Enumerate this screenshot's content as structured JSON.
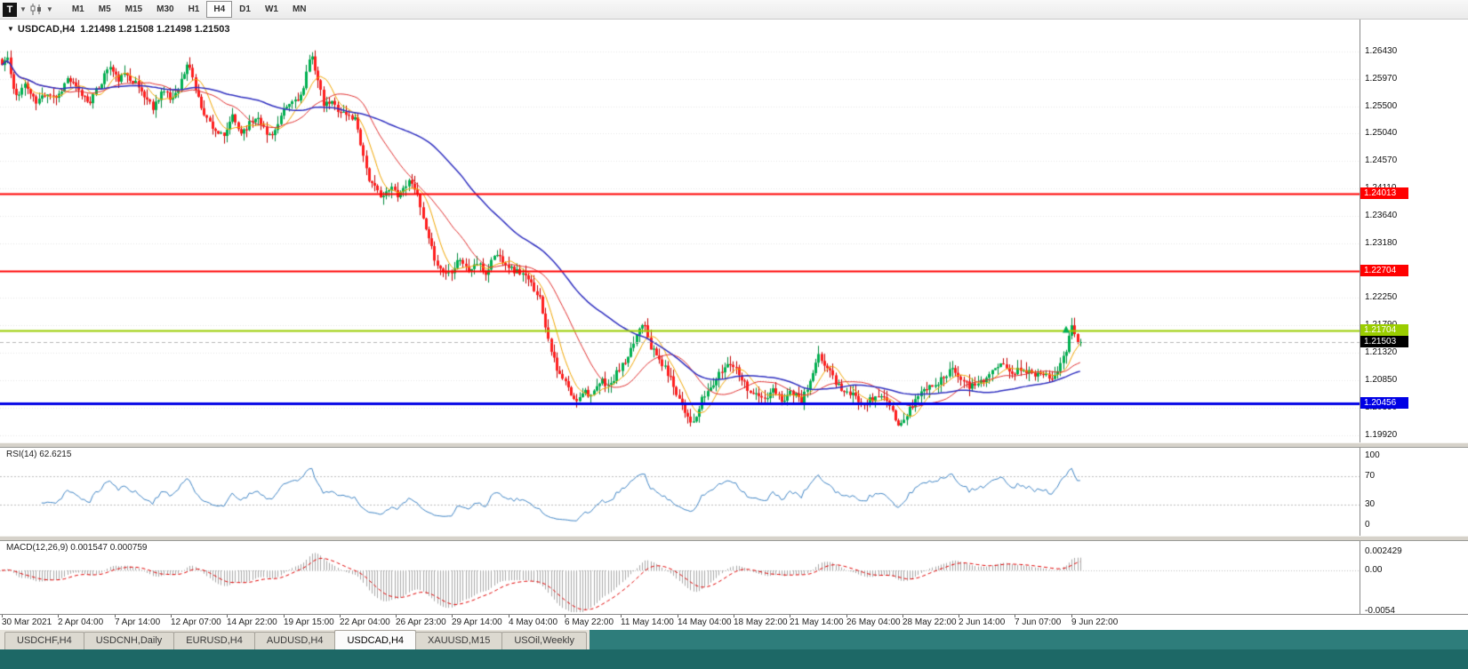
{
  "toolbar": {
    "t_icon": "T",
    "timeframes": [
      {
        "label": "M1",
        "active": false
      },
      {
        "label": "M5",
        "active": false
      },
      {
        "label": "M15",
        "active": false
      },
      {
        "label": "M30",
        "active": false
      },
      {
        "label": "H1",
        "active": false
      },
      {
        "label": "H4",
        "active": true
      },
      {
        "label": "D1",
        "active": false
      },
      {
        "label": "W1",
        "active": false
      },
      {
        "label": "MN",
        "active": false
      }
    ]
  },
  "header": {
    "collapse_icon": "▼",
    "symbol": "USDCAD,H4",
    "quotes": "1.21498 1.21508 1.21498 1.21503"
  },
  "price_axis": {
    "ticks": [
      "1.26430",
      "1.25970",
      "1.25500",
      "1.25040",
      "1.24570",
      "1.24110",
      "1.23640",
      "1.23180",
      "1.22710",
      "1.22250",
      "1.21790",
      "1.21320",
      "1.20850",
      "1.20390",
      "1.19920"
    ]
  },
  "levels": [
    {
      "label": "1.24013",
      "price": 1.24013,
      "line_color": "#ff0000",
      "label_bg": "#ff0000",
      "label_fg": "#ffffff",
      "width": 2
    },
    {
      "label": "1.22704",
      "price": 1.22704,
      "line_color": "#ff0000",
      "label_bg": "#ff0000",
      "label_fg": "#ffffff",
      "width": 2
    },
    {
      "label": "1.21704",
      "price": 1.21704,
      "line_color": "#9acd00",
      "label_bg": "#9acd00",
      "label_fg": "#ffffff",
      "width": 2
    },
    {
      "label": "1.20456",
      "price": 1.20456,
      "line_color": "#0000e5",
      "label_bg": "#0000e5",
      "label_fg": "#ffffff",
      "width": 3
    }
  ],
  "current_price": {
    "label": "1.21503",
    "price": 1.21503,
    "label_bg": "#000000",
    "label_fg": "#ffffff",
    "line_color": "#b4b4b4"
  },
  "rsi_pane": {
    "label": "RSI(14) 62.6215",
    "line_color": "#3f84c4",
    "level_lines": [
      70,
      30
    ],
    "level_line_color": "#bdbdbd",
    "ticks": [
      {
        "label": "100",
        "value": 100
      },
      {
        "label": "70",
        "value": 70
      },
      {
        "label": "30",
        "value": 30
      },
      {
        "label": "0",
        "value": 0
      }
    ]
  },
  "macd_pane": {
    "label": "MACD(12,26,9) 0.001547 0.000759",
    "histogram_color": "#a8a8a8",
    "signal_color": "#e00000",
    "zero_line_color": "#bdbdbd",
    "ticks": [
      {
        "label": "0.002429",
        "value": 0.002429
      },
      {
        "label": "0.00",
        "value": 0
      },
      {
        "label": "-0.0054",
        "value": -0.0054
      }
    ]
  },
  "time_axis": {
    "labels": [
      "30 Mar 2021",
      "2 Apr 04:00",
      "7 Apr 14:00",
      "12 Apr 07:00",
      "14 Apr 22:00",
      "19 Apr 15:00",
      "22 Apr 04:00",
      "26 Apr 23:00",
      "29 Apr 14:00",
      "4 May 04:00",
      "6 May 22:00",
      "11 May 14:00",
      "14 May 04:00",
      "18 May 22:00",
      "21 May 14:00",
      "26 May 04:00",
      "28 May 22:00",
      "2 Jun 14:00",
      "7 Jun 07:00",
      "9 Jun 22:00"
    ]
  },
  "tabs": [
    {
      "label": "USDCHF,H4",
      "active": false
    },
    {
      "label": "USDCNH,Daily",
      "active": false
    },
    {
      "label": "EURUSD,H4",
      "active": false
    },
    {
      "label": "AUDUSD,H4",
      "active": false
    },
    {
      "label": "USDCAD,H4",
      "active": true
    },
    {
      "label": "XAUUSD,M15",
      "active": false
    },
    {
      "label": "USOil,Weekly",
      "active": false
    }
  ],
  "chart_data": {
    "type": "candlestick",
    "symbol": "USDCAD",
    "timeframe": "H4",
    "visible_range": {
      "start": "30 Mar 2021",
      "end": "9 Jun 2021 22:00"
    },
    "y_range": [
      1.1992,
      1.2643
    ],
    "last_close": 1.21503,
    "bars": 380,
    "seed": 11,
    "up_color": "#00b050",
    "down_color": "#ff1e1e",
    "up_wick": "#008a3c",
    "down_wick": "#c00000",
    "moving_averages": [
      {
        "period": 8,
        "color": "#f0a500",
        "width": 1
      },
      {
        "period": 21,
        "color": "#e03030",
        "width": 1
      },
      {
        "period": 55,
        "color": "#3030c0",
        "width": 1.5
      }
    ],
    "horizontal_levels": [
      1.24013,
      1.22704,
      1.21704,
      1.20456
    ],
    "rsi": {
      "period": 14,
      "last": 62.6215
    },
    "macd": {
      "fast": 12,
      "slow": 26,
      "signal": 9,
      "last_main": 0.001547,
      "last_signal": 0.000759
    },
    "markers": [
      {
        "type": "arrow-up",
        "x": 1199,
        "price": 1.2172,
        "color": "#00b050"
      }
    ],
    "close_keypoints": [
      [
        0,
        1.2615
      ],
      [
        8,
        1.2635
      ],
      [
        16,
        1.2565
      ],
      [
        28,
        1.2588
      ],
      [
        40,
        1.2555
      ],
      [
        52,
        1.2575
      ],
      [
        64,
        1.2565
      ],
      [
        76,
        1.2598
      ],
      [
        88,
        1.2575
      ],
      [
        100,
        1.2558
      ],
      [
        112,
        1.2585
      ],
      [
        122,
        1.262
      ],
      [
        132,
        1.2595
      ],
      [
        142,
        1.2605
      ],
      [
        152,
        1.259
      ],
      [
        162,
        1.2568
      ],
      [
        172,
        1.2548
      ],
      [
        182,
        1.2578
      ],
      [
        192,
        1.256
      ],
      [
        202,
        1.2588
      ],
      [
        212,
        1.2625
      ],
      [
        222,
        1.2565
      ],
      [
        232,
        1.253
      ],
      [
        242,
        1.251
      ],
      [
        252,
        1.2495
      ],
      [
        260,
        1.2535
      ],
      [
        270,
        1.2505
      ],
      [
        280,
        1.252
      ],
      [
        290,
        1.2535
      ],
      [
        300,
        1.25
      ],
      [
        310,
        1.251
      ],
      [
        320,
        1.2545
      ],
      [
        330,
        1.256
      ],
      [
        340,
        1.257
      ],
      [
        350,
        1.2645
      ],
      [
        356,
        1.26
      ],
      [
        364,
        1.255
      ],
      [
        372,
        1.2558
      ],
      [
        380,
        1.2545
      ],
      [
        390,
        1.2535
      ],
      [
        400,
        1.2528
      ],
      [
        408,
        1.2468
      ],
      [
        416,
        1.242
      ],
      [
        424,
        1.2405
      ],
      [
        432,
        1.2398
      ],
      [
        440,
        1.2412
      ],
      [
        448,
        1.24
      ],
      [
        456,
        1.2418
      ],
      [
        464,
        1.2425
      ],
      [
        472,
        1.238
      ],
      [
        480,
        1.233
      ],
      [
        488,
        1.2295
      ],
      [
        496,
        1.227
      ],
      [
        506,
        1.2268
      ],
      [
        516,
        1.2295
      ],
      [
        526,
        1.227
      ],
      [
        536,
        1.2285
      ],
      [
        546,
        1.2265
      ],
      [
        556,
        1.23
      ],
      [
        566,
        1.229
      ],
      [
        576,
        1.2272
      ],
      [
        586,
        1.2268
      ],
      [
        596,
        1.225
      ],
      [
        606,
        1.223
      ],
      [
        616,
        1.216
      ],
      [
        626,
        1.21
      ],
      [
        636,
        1.208
      ],
      [
        646,
        1.2048
      ],
      [
        656,
        1.207
      ],
      [
        666,
        1.2058
      ],
      [
        676,
        1.2085
      ],
      [
        686,
        1.2075
      ],
      [
        696,
        1.2105
      ],
      [
        706,
        1.212
      ],
      [
        716,
        1.2165
      ],
      [
        724,
        1.219
      ],
      [
        732,
        1.214
      ],
      [
        742,
        1.2118
      ],
      [
        752,
        1.2095
      ],
      [
        762,
        1.206
      ],
      [
        772,
        1.2028
      ],
      [
        780,
        1.201
      ],
      [
        790,
        1.2055
      ],
      [
        800,
        1.2075
      ],
      [
        810,
        1.2098
      ],
      [
        820,
        1.2118
      ],
      [
        830,
        1.2102
      ],
      [
        840,
        1.2072
      ],
      [
        850,
        1.206
      ],
      [
        860,
        1.2052
      ],
      [
        870,
        1.2068
      ],
      [
        880,
        1.2052
      ],
      [
        890,
        1.2068
      ],
      [
        900,
        1.2048
      ],
      [
        910,
        1.2078
      ],
      [
        920,
        1.2125
      ],
      [
        930,
        1.2108
      ],
      [
        940,
        1.2082
      ],
      [
        950,
        1.2065
      ],
      [
        960,
        1.2058
      ],
      [
        970,
        1.2048
      ],
      [
        980,
        1.2052
      ],
      [
        990,
        1.2062
      ],
      [
        1000,
        1.2042
      ],
      [
        1010,
        1.2005
      ],
      [
        1020,
        1.2028
      ],
      [
        1030,
        1.2055
      ],
      [
        1040,
        1.2072
      ],
      [
        1050,
        1.2078
      ],
      [
        1060,
        1.2088
      ],
      [
        1070,
        1.2108
      ],
      [
        1080,
        1.2092
      ],
      [
        1090,
        1.2072
      ],
      [
        1100,
        1.2082
      ],
      [
        1110,
        1.2092
      ],
      [
        1120,
        1.2105
      ],
      [
        1130,
        1.2112
      ],
      [
        1140,
        1.2098
      ],
      [
        1150,
        1.2108
      ],
      [
        1160,
        1.2095
      ],
      [
        1170,
        1.2102
      ],
      [
        1180,
        1.2088
      ],
      [
        1190,
        1.2108
      ],
      [
        1198,
        1.2135
      ],
      [
        1206,
        1.2178
      ],
      [
        1212,
        1.215
      ],
      [
        1215,
        1.21503
      ]
    ]
  }
}
